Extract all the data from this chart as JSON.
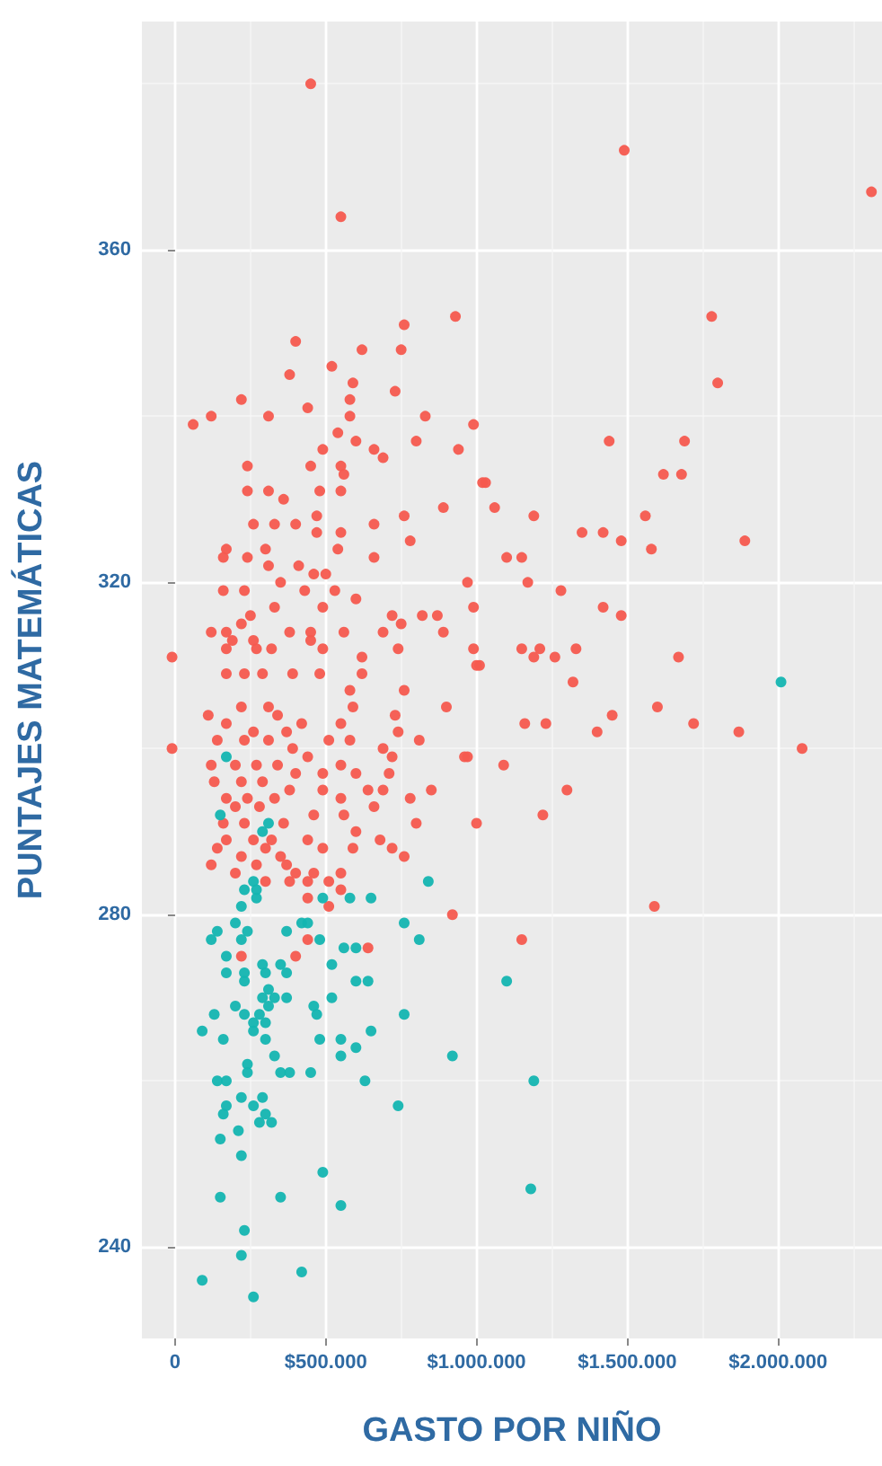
{
  "chart_data": {
    "type": "scatter",
    "xlabel": "GASTO POR NIÑO",
    "ylabel": "PUNTAJES MATEMÁTICAS",
    "xlim": [
      -110000,
      2345000
    ],
    "ylim": [
      229,
      387.5
    ],
    "xticks": [
      0,
      {
        "value": 500000,
        "label": "$500.000"
      },
      {
        "value": 1000000,
        "label": "$1.000.000"
      },
      {
        "value": 1500000,
        "label": "$1.500.000"
      },
      {
        "value": 2000000,
        "label": "$2.000.000"
      }
    ],
    "yticks": [
      240,
      280,
      320,
      360
    ],
    "grid": true,
    "marker": "circle",
    "series": [
      {
        "color": "#f65a4f",
        "x": [
          450000,
          550000,
          1490000,
          2310000,
          760000,
          930000,
          750000,
          620000,
          400000,
          380000,
          520000,
          590000,
          580000,
          730000,
          220000,
          120000,
          60000,
          310000,
          440000,
          580000,
          830000,
          990000,
          540000,
          600000,
          800000,
          660000,
          690000,
          490000,
          240000,
          450000,
          550000,
          940000,
          560000,
          240000,
          310000,
          360000,
          480000,
          550000,
          1030000,
          890000,
          1060000,
          470000,
          260000,
          330000,
          400000,
          470000,
          550000,
          660000,
          760000,
          780000,
          170000,
          240000,
          300000,
          540000,
          660000,
          160000,
          310000,
          410000,
          460000,
          500000,
          350000,
          430000,
          530000,
          600000,
          1100000,
          970000,
          990000,
          160000,
          230000,
          330000,
          250000,
          490000,
          720000,
          820000,
          870000,
          750000,
          120000,
          170000,
          220000,
          380000,
          450000,
          560000,
          690000,
          890000,
          190000,
          260000,
          320000,
          450000,
          490000,
          620000,
          740000,
          990000,
          -10000,
          -10000,
          1780000,
          1800000,
          1440000,
          1690000,
          1620000,
          1680000,
          1020000,
          1190000,
          1560000,
          1350000,
          1420000,
          1480000,
          1580000,
          1890000,
          1150000,
          1170000,
          1280000,
          1420000,
          1480000,
          1150000,
          1210000,
          1190000,
          1260000,
          1330000,
          1010000,
          1320000,
          1670000,
          1160000,
          1230000,
          1450000,
          1400000,
          1600000,
          1720000,
          1870000,
          2080000,
          970000,
          1090000,
          1300000,
          1000000,
          1220000,
          1590000,
          1150000,
          170000,
          270000,
          1000000,
          170000,
          230000,
          290000,
          390000,
          480000,
          620000,
          760000,
          900000,
          110000,
          220000,
          310000,
          340000,
          420000,
          580000,
          590000,
          730000,
          170000,
          260000,
          370000,
          510000,
          550000,
          580000,
          740000,
          810000,
          140000,
          230000,
          310000,
          390000,
          440000,
          690000,
          720000,
          960000,
          120000,
          200000,
          270000,
          340000,
          400000,
          490000,
          550000,
          600000,
          710000,
          130000,
          220000,
          290000,
          380000,
          490000,
          640000,
          780000,
          850000,
          170000,
          240000,
          330000,
          550000,
          690000,
          200000,
          280000,
          460000,
          560000,
          660000,
          800000,
          160000,
          230000,
          360000,
          600000,
          170000,
          260000,
          320000,
          440000,
          680000,
          720000,
          140000,
          220000,
          300000,
          350000,
          490000,
          590000,
          760000,
          120000,
          270000,
          370000,
          460000,
          200000,
          400000,
          550000,
          300000,
          440000,
          510000,
          440000,
          510000,
          550000,
          920000,
          220000,
          640000,
          440000,
          400000,
          380000
        ],
        "values": [
          380,
          364,
          372,
          367,
          351,
          352,
          348,
          348,
          349,
          345,
          346,
          344,
          342,
          343,
          342,
          340,
          339,
          340,
          341,
          340,
          340,
          339,
          338,
          337,
          337,
          336,
          335,
          336,
          334,
          334,
          334,
          336,
          333,
          331,
          331,
          330,
          331,
          331,
          332,
          329,
          329,
          328,
          327,
          327,
          327,
          326,
          326,
          327,
          328,
          325,
          324,
          323,
          324,
          324,
          323,
          323,
          322,
          322,
          321,
          321,
          320,
          319,
          319,
          318,
          323,
          320,
          317,
          319,
          319,
          317,
          316,
          317,
          316,
          316,
          316,
          315,
          314,
          314,
          315,
          314,
          314,
          314,
          314,
          314,
          313,
          313,
          312,
          313,
          312,
          311,
          312,
          312,
          311,
          300,
          352,
          344,
          337,
          337,
          333,
          333,
          332,
          328,
          328,
          326,
          326,
          325,
          324,
          325,
          323,
          320,
          319,
          317,
          316,
          312,
          312,
          311,
          311,
          312,
          310,
          308,
          311,
          303,
          303,
          304,
          302,
          305,
          303,
          302,
          300,
          299,
          298,
          295,
          291,
          292,
          281,
          277,
          312,
          312,
          310,
          309,
          309,
          309,
          309,
          309,
          309,
          307,
          305,
          304,
          305,
          305,
          304,
          303,
          307,
          305,
          304,
          303,
          302,
          302,
          301,
          303,
          301,
          302,
          301,
          301,
          301,
          301,
          300,
          299,
          300,
          299,
          299,
          298,
          298,
          298,
          298,
          297,
          297,
          298,
          297,
          297,
          296,
          296,
          296,
          295,
          295,
          295,
          294,
          295,
          294,
          294,
          294,
          294,
          295,
          293,
          293,
          292,
          292,
          293,
          291,
          291,
          291,
          291,
          290,
          289,
          289,
          289,
          289,
          289,
          288,
          288,
          287,
          288,
          287,
          288,
          288,
          287,
          286,
          286,
          286,
          285,
          285,
          285,
          285,
          284,
          284,
          284,
          282,
          281,
          283,
          280,
          275,
          276,
          277,
          275,
          284
        ]
      },
      {
        "color": "#14b5b1",
        "x": [
          170000,
          150000,
          290000,
          310000,
          260000,
          270000,
          230000,
          220000,
          270000,
          490000,
          580000,
          650000,
          840000,
          760000,
          810000,
          1100000,
          120000,
          140000,
          200000,
          240000,
          220000,
          370000,
          420000,
          440000,
          480000,
          560000,
          600000,
          170000,
          290000,
          350000,
          520000,
          170000,
          230000,
          300000,
          370000,
          230000,
          600000,
          640000,
          310000,
          290000,
          330000,
          370000,
          520000,
          200000,
          130000,
          230000,
          280000,
          310000,
          460000,
          260000,
          300000,
          470000,
          760000,
          90000,
          260000,
          480000,
          550000,
          650000,
          160000,
          300000,
          550000,
          600000,
          920000,
          330000,
          240000,
          240000,
          380000,
          350000,
          450000,
          140000,
          170000,
          630000,
          220000,
          170000,
          290000,
          260000,
          300000,
          160000,
          280000,
          320000,
          210000,
          740000,
          150000,
          220000,
          490000,
          150000,
          350000,
          550000,
          230000,
          220000,
          420000,
          90000,
          260000,
          2010000,
          1190000,
          1180000
        ],
        "values": [
          299,
          292,
          290,
          291,
          284,
          283,
          283,
          281,
          282,
          282,
          282,
          282,
          284,
          279,
          277,
          272,
          277,
          278,
          279,
          278,
          277,
          278,
          279,
          279,
          277,
          276,
          276,
          275,
          274,
          274,
          274,
          273,
          273,
          273,
          273,
          272,
          272,
          272,
          271,
          270,
          270,
          270,
          270,
          269,
          268,
          268,
          268,
          269,
          269,
          267,
          267,
          268,
          268,
          266,
          266,
          265,
          265,
          266,
          265,
          265,
          263,
          264,
          263,
          263,
          262,
          261,
          261,
          261,
          261,
          260,
          260,
          260,
          258,
          257,
          258,
          257,
          256,
          256,
          255,
          255,
          254,
          257,
          253,
          251,
          249,
          246,
          246,
          245,
          242,
          239,
          237,
          236,
          234,
          308,
          260,
          247
        ]
      }
    ]
  }
}
